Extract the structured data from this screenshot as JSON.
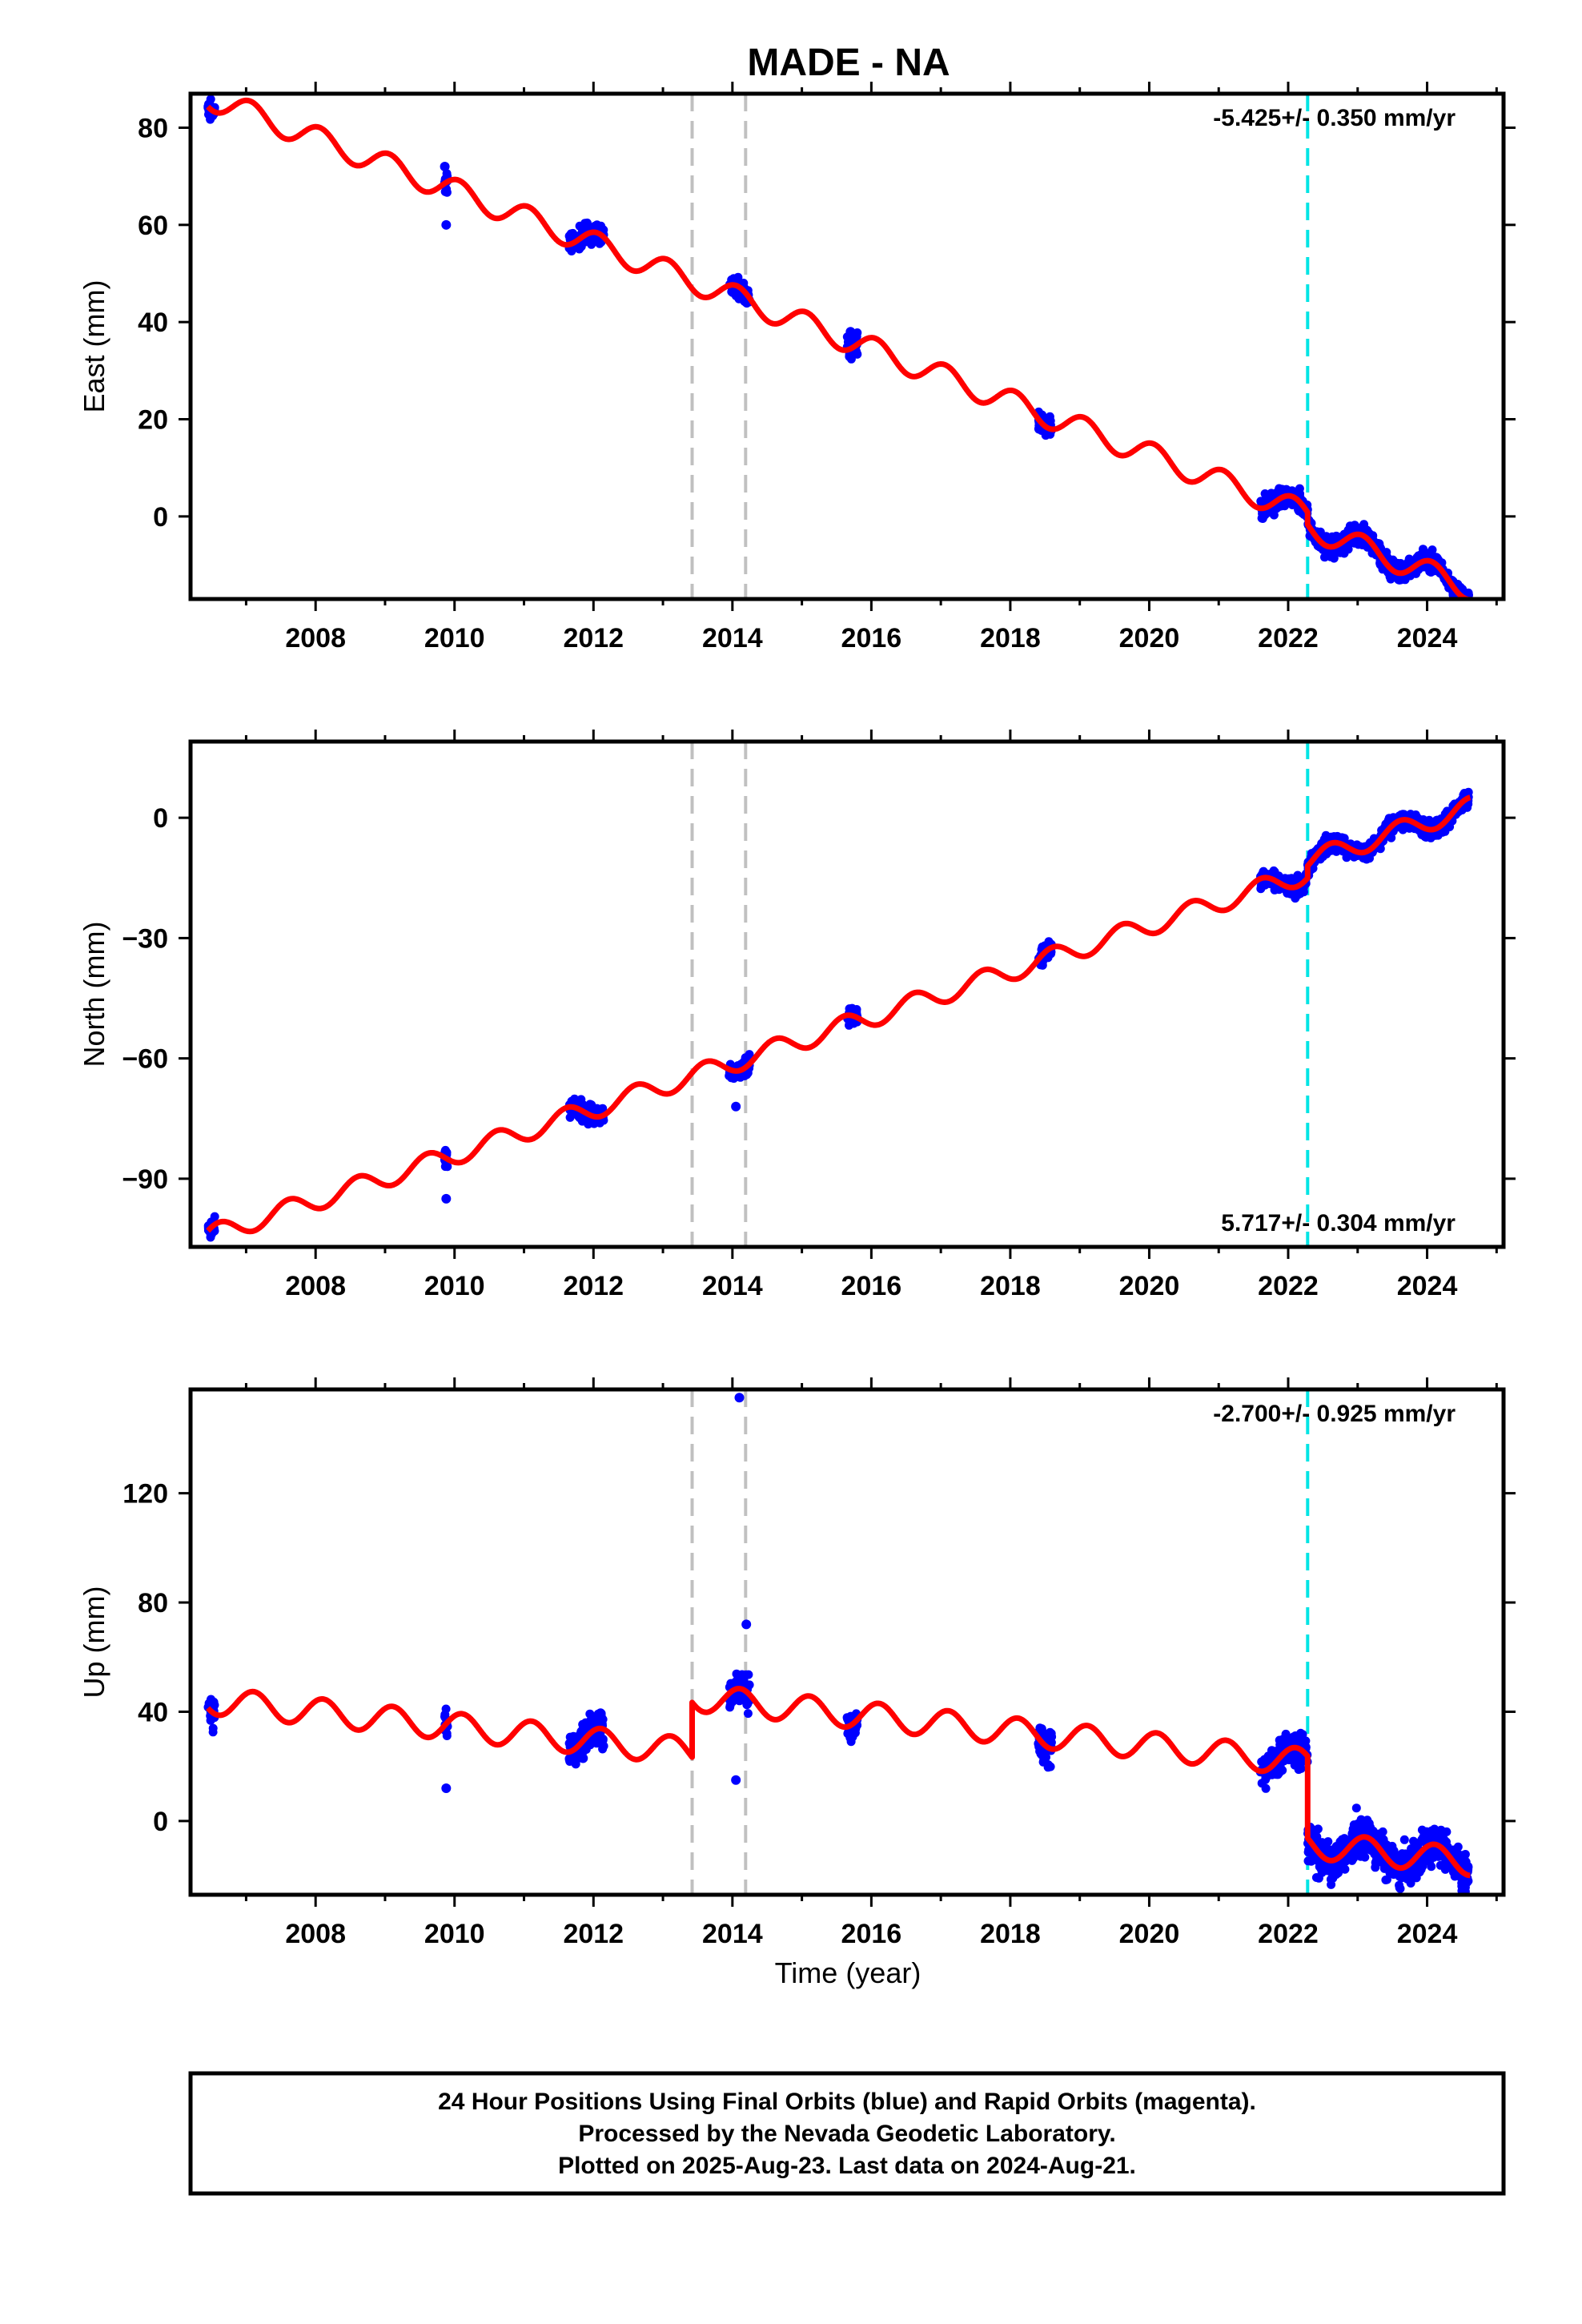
{
  "title": "MADE - NA",
  "xlabel": "Time (year)",
  "footer": [
    "24 Hour Positions Using Final Orbits (blue) and Rapid Orbits (magenta).",
    "Processed by the Nevada Geodetic Laboratory.",
    "Plotted on 2025-Aug-23. Last data on 2024-Aug-21."
  ],
  "colors": {
    "data": "#0000ff",
    "model": "#ff0000",
    "gray_dash": "#c0c0c0",
    "cyan_dash": "#00e5e5"
  },
  "chart_data": [
    {
      "type": "scatter",
      "name": "east",
      "ylabel": "East (mm)",
      "rate": "-5.425+/- 0.350 mm/yr",
      "rate_position": "top-right",
      "xlim": [
        2006.2,
        2025.1
      ],
      "ylim": [
        -17,
        87
      ],
      "xticks": [
        "2008",
        "2010",
        "2012",
        "2014",
        "2016",
        "2018",
        "2020",
        "2022",
        "2024"
      ],
      "yticks": [
        "80",
        "60",
        "40",
        "20",
        "0"
      ],
      "ytick_values": [
        80,
        60,
        40,
        20,
        0
      ],
      "offsets_gray": [
        2013.42,
        2014.19
      ],
      "offset_cyan": [
        2022.28
      ],
      "model": {
        "base_year": 2006.5,
        "base": 86.0,
        "slope": -5.425,
        "seasonal_amp": 2.5,
        "phase": 1.2,
        "steps": [
          {
            "at": 2022.28,
            "delta": -2.5
          }
        ]
      },
      "data_segments": [
        [
          2006.45,
          2006.55
        ],
        [
          2009.85,
          2009.9
        ],
        [
          2011.65,
          2012.15
        ],
        [
          2013.95,
          2014.25
        ],
        [
          2015.65,
          2015.8
        ],
        [
          2018.4,
          2018.6
        ],
        [
          2021.6,
          2024.6
        ]
      ],
      "outliers": [
        [
          2009.88,
          60
        ],
        [
          2009.86,
          72
        ],
        [
          2015.7,
          38
        ]
      ]
    },
    {
      "type": "scatter",
      "name": "north",
      "ylabel": "North (mm)",
      "rate": "5.717+/- 0.304 mm/yr",
      "rate_position": "bottom-right",
      "xlim": [
        2006.2,
        2025.1
      ],
      "ylim": [
        -107,
        19
      ],
      "xticks": [
        "2008",
        "2010",
        "2012",
        "2014",
        "2016",
        "2018",
        "2020",
        "2022",
        "2024"
      ],
      "yticks": [
        "0",
        "−30",
        "−60",
        "−90"
      ],
      "ytick_values": [
        0,
        -30,
        -60,
        -90
      ],
      "offsets_gray": [
        2013.42,
        2014.19
      ],
      "offset_cyan": [
        2022.28
      ],
      "model": {
        "base_year": 2006.5,
        "base": -104.0,
        "slope": 5.717,
        "seasonal_amp": 2.5,
        "phase": 4.0,
        "steps": [
          {
            "at": 2022.28,
            "delta": 3.0
          }
        ]
      },
      "data_segments": [
        [
          2006.45,
          2006.55
        ],
        [
          2009.85,
          2009.9
        ],
        [
          2011.65,
          2012.15
        ],
        [
          2013.95,
          2014.25
        ],
        [
          2015.65,
          2015.8
        ],
        [
          2018.4,
          2018.6
        ],
        [
          2021.6,
          2024.6
        ]
      ],
      "outliers": [
        [
          2009.88,
          -95
        ],
        [
          2009.86,
          -84
        ],
        [
          2014.05,
          -72
        ]
      ]
    },
    {
      "type": "scatter",
      "name": "up",
      "ylabel": "Up (mm)",
      "rate": "-2.700+/- 0.925 mm/yr",
      "rate_position": "top-right",
      "xlim": [
        2006.2,
        2025.1
      ],
      "ylim": [
        -27,
        158
      ],
      "xticks": [
        "2008",
        "2010",
        "2012",
        "2014",
        "2016",
        "2018",
        "2020",
        "2022",
        "2024"
      ],
      "yticks": [
        "120",
        "80",
        "40",
        "0"
      ],
      "ytick_values": [
        120,
        80,
        40,
        0
      ],
      "offsets_gray": [
        2013.42,
        2014.19
      ],
      "offset_cyan": [
        2022.28
      ],
      "model": {
        "base_year": 2006.5,
        "base": 44.0,
        "slope": -2.7,
        "seasonal_amp": 5.0,
        "phase": 0.9,
        "steps": [
          {
            "at": 2013.42,
            "delta": 20.0
          },
          {
            "at": 2022.28,
            "delta": -30.0
          }
        ]
      },
      "data_segments": [
        [
          2006.45,
          2006.55
        ],
        [
          2009.85,
          2009.9
        ],
        [
          2011.65,
          2012.15
        ],
        [
          2013.95,
          2014.25
        ],
        [
          2015.65,
          2015.8
        ],
        [
          2018.4,
          2018.6
        ],
        [
          2021.6,
          2024.6
        ]
      ],
      "outliers": [
        [
          2009.88,
          12
        ],
        [
          2014.1,
          155
        ],
        [
          2014.2,
          72
        ],
        [
          2014.05,
          15
        ],
        [
          2011.85,
          23
        ]
      ]
    }
  ]
}
